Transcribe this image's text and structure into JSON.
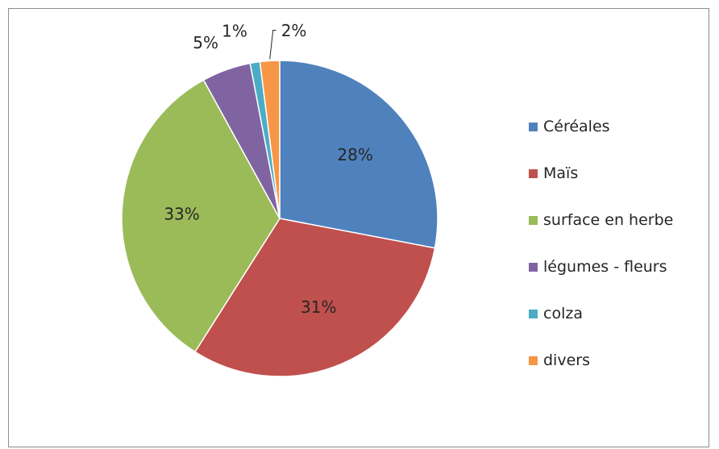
{
  "chart_data": {
    "type": "pie",
    "title": "",
    "slices": [
      {
        "label": "Céréales",
        "value": 28,
        "display": "28%",
        "color": "#4F81BD"
      },
      {
        "label": "Maïs",
        "value": 31,
        "display": "31%",
        "color": "#C0504D"
      },
      {
        "label": "surface en herbe",
        "value": 33,
        "display": "33%",
        "color": "#9BBB59"
      },
      {
        "label": "légumes - fleurs",
        "value": 5,
        "display": "5%",
        "color": "#8064A2"
      },
      {
        "label": "colza",
        "value": 1,
        "display": "1%",
        "color": "#4BACC6"
      },
      {
        "label": "divers",
        "value": 2,
        "display": "2%",
        "color": "#F79646"
      }
    ],
    "legend_position": "right"
  }
}
